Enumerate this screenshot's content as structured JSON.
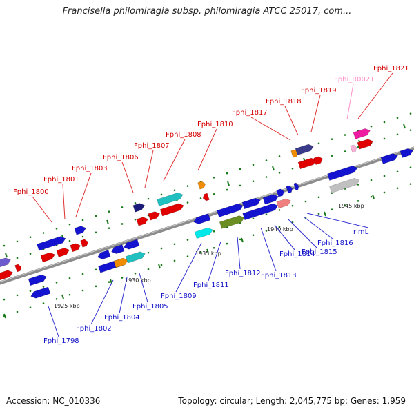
{
  "title": "Francisella philomiragia subsp. philomiragia ATCC 25017, com...",
  "footer": {
    "accession": "Accession: NC_010336",
    "summary": "Topology: circular; Length: 2,045,775 bp; Genes: 1,959"
  },
  "colors": {
    "top_label": "#d40000",
    "top_label_light": "#ff8fc8",
    "bottom_label": "#1010c8",
    "leader_top": "#e03030",
    "leader_bottom": "#3030d0",
    "backbone": "#8c8c8c",
    "tick": "#1a7a1a"
  },
  "scale": [
    {
      "label": "1925 kbp"
    },
    {
      "label": "1930 kbp"
    },
    {
      "label": "1935 kbp"
    },
    {
      "label": "1940 kbp"
    },
    {
      "label": "1945 kbp"
    }
  ],
  "top_labels": [
    {
      "name": "Fphi_1800"
    },
    {
      "name": "Fphi_1801"
    },
    {
      "name": "Fphi_1803"
    },
    {
      "name": "Fphi_1806"
    },
    {
      "name": "Fphi_1807"
    },
    {
      "name": "Fphi_1808"
    },
    {
      "name": "Fphi_1810"
    },
    {
      "name": "Fphi_1817"
    },
    {
      "name": "Fphi_1818"
    },
    {
      "name": "Fphi_1819"
    },
    {
      "name": "Fphi_R0021"
    },
    {
      "name": "Fphi_1821"
    }
  ],
  "bottom_labels": [
    {
      "name": "Fphi_1798"
    },
    {
      "name": "Fphi_1802"
    },
    {
      "name": "Fphi_1804"
    },
    {
      "name": "Fphi_1805"
    },
    {
      "name": "Fphi_1809"
    },
    {
      "name": "Fphi_1811"
    },
    {
      "name": "Fphi_1812"
    },
    {
      "name": "Fphi_1813"
    },
    {
      "name": "Fphi_1814"
    },
    {
      "name": "Fphi_1815"
    },
    {
      "name": "Fphi_1816"
    },
    {
      "name": "rlmL"
    }
  ]
}
